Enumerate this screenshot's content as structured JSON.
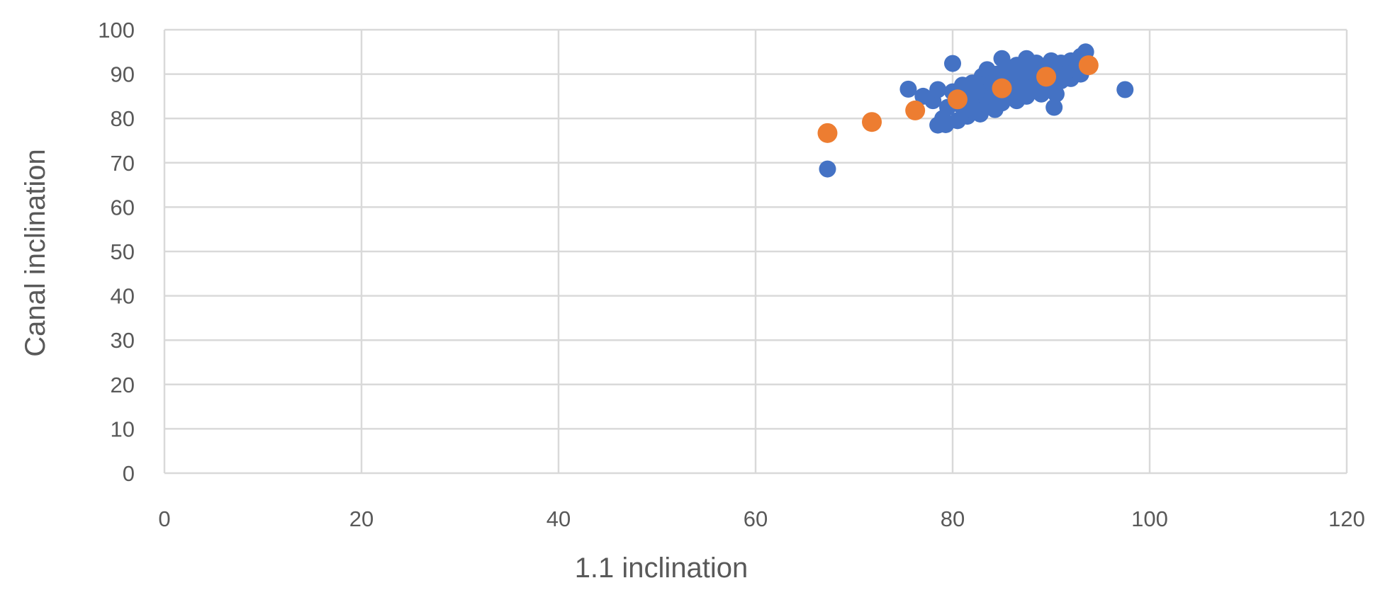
{
  "chart_data": {
    "type": "scatter",
    "title": "",
    "xlabel": "1.1 inclination",
    "ylabel": "Canal inclination",
    "xlim": [
      0,
      120
    ],
    "ylim": [
      0,
      100
    ],
    "xticks": [
      0,
      20,
      40,
      60,
      80,
      100,
      120
    ],
    "yticks": [
      0,
      10,
      20,
      30,
      40,
      50,
      60,
      70,
      80,
      90,
      100
    ],
    "grid": true,
    "legend": "none",
    "series": [
      {
        "color": "#4472C4",
        "points": [
          [
            67.3,
            68.6
          ],
          [
            75.5,
            86.6
          ],
          [
            77.0,
            85.0
          ],
          [
            78.0,
            84.0
          ],
          [
            78.5,
            86.5
          ],
          [
            78.5,
            78.5
          ],
          [
            79.0,
            80.0
          ],
          [
            79.3,
            78.6
          ],
          [
            79.5,
            82.5
          ],
          [
            80.0,
            92.4
          ],
          [
            80.0,
            86.0
          ],
          [
            80.5,
            79.5
          ],
          [
            80.8,
            83.0
          ],
          [
            81.0,
            87.5
          ],
          [
            81.5,
            85.0
          ],
          [
            81.5,
            80.5
          ],
          [
            82.0,
            82.0
          ],
          [
            82.0,
            88.0
          ],
          [
            82.5,
            84.0
          ],
          [
            82.8,
            81.0
          ],
          [
            83.0,
            86.0
          ],
          [
            83.0,
            89.5
          ],
          [
            83.5,
            83.0
          ],
          [
            83.5,
            91.0
          ],
          [
            84.0,
            85.0
          ],
          [
            84.0,
            88.0
          ],
          [
            84.3,
            82.0
          ],
          [
            84.5,
            90.0
          ],
          [
            85.0,
            86.5
          ],
          [
            85.0,
            93.5
          ],
          [
            85.0,
            83.5
          ],
          [
            85.5,
            88.5
          ],
          [
            85.5,
            91.5
          ],
          [
            86.0,
            85.0
          ],
          [
            86.0,
            87.5
          ],
          [
            86.0,
            90.5
          ],
          [
            86.5,
            84.0
          ],
          [
            86.5,
            92.0
          ],
          [
            87.0,
            86.0
          ],
          [
            87.0,
            89.0
          ],
          [
            87.3,
            91.0
          ],
          [
            87.5,
            93.5
          ],
          [
            87.5,
            85.0
          ],
          [
            88.0,
            88.0
          ],
          [
            88.0,
            90.5
          ],
          [
            88.5,
            86.5
          ],
          [
            88.5,
            92.5
          ],
          [
            89.0,
            88.5
          ],
          [
            89.0,
            85.5
          ],
          [
            89.5,
            91.5
          ],
          [
            89.5,
            87.0
          ],
          [
            90.0,
            89.5
          ],
          [
            90.0,
            93.0
          ],
          [
            90.3,
            82.5
          ],
          [
            90.5,
            85.5
          ],
          [
            90.5,
            90.5
          ],
          [
            91.0,
            88.5
          ],
          [
            91.0,
            92.5
          ],
          [
            91.5,
            90.0
          ],
          [
            92.0,
            89.0
          ],
          [
            92.0,
            93.0
          ],
          [
            92.5,
            91.0
          ],
          [
            93.0,
            90.0
          ],
          [
            93.0,
            94.0
          ],
          [
            93.5,
            95.0
          ],
          [
            93.5,
            92.0
          ],
          [
            97.5,
            86.5
          ]
        ]
      },
      {
        "color": "#ED7D31",
        "points": [
          [
            67.3,
            76.7
          ],
          [
            71.8,
            79.2
          ],
          [
            76.2,
            81.8
          ],
          [
            80.5,
            84.3
          ],
          [
            85.0,
            86.8
          ],
          [
            89.5,
            89.4
          ],
          [
            93.8,
            92.0
          ]
        ]
      }
    ]
  }
}
